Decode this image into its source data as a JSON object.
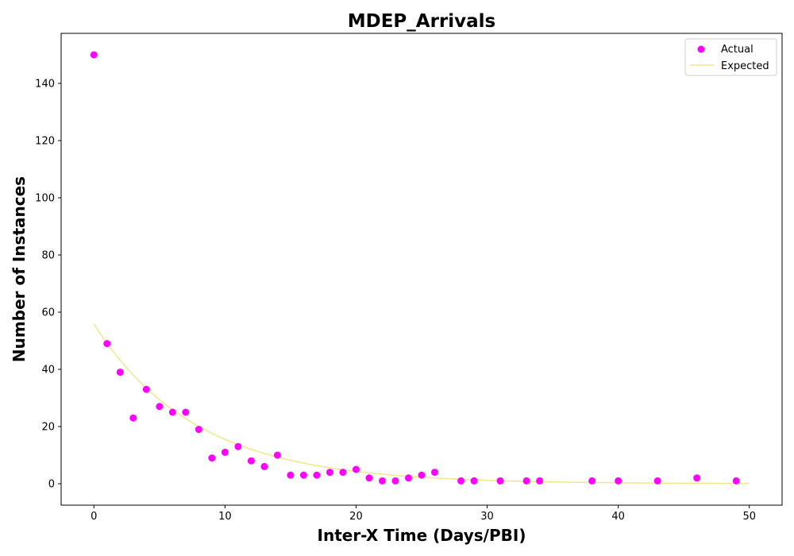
{
  "chart_data": {
    "type": "scatter",
    "title": "MDEP_Arrivals",
    "xlabel": "Inter-X Time (Days/PBI)",
    "ylabel": "Number of Instances",
    "xlim": [
      -2.5,
      52.5
    ],
    "ylim": [
      -7.5,
      157.5
    ],
    "xticks": [
      0,
      10,
      20,
      30,
      40,
      50
    ],
    "yticks": [
      0,
      20,
      40,
      60,
      80,
      100,
      120,
      140
    ],
    "grid": false,
    "legend_position": "top-right",
    "series": [
      {
        "name": "Actual",
        "kind": "scatter",
        "color": "#ff00ff",
        "points": [
          [
            0,
            150
          ],
          [
            1,
            49
          ],
          [
            2,
            39
          ],
          [
            3,
            23
          ],
          [
            4,
            33
          ],
          [
            5,
            27
          ],
          [
            6,
            25
          ],
          [
            7,
            25
          ],
          [
            8,
            19
          ],
          [
            9,
            9
          ],
          [
            10,
            11
          ],
          [
            11,
            13
          ],
          [
            12,
            8
          ],
          [
            13,
            6
          ],
          [
            14,
            10
          ],
          [
            15,
            3
          ],
          [
            16,
            3
          ],
          [
            17,
            3
          ],
          [
            18,
            4
          ],
          [
            19,
            4
          ],
          [
            20,
            5
          ],
          [
            21,
            2
          ],
          [
            22,
            1
          ],
          [
            23,
            1
          ],
          [
            24,
            2
          ],
          [
            25,
            3
          ],
          [
            26,
            4
          ],
          [
            28,
            1
          ],
          [
            29,
            1
          ],
          [
            31,
            1
          ],
          [
            33,
            1
          ],
          [
            34,
            1
          ],
          [
            38,
            1
          ],
          [
            40,
            1
          ],
          [
            43,
            1
          ],
          [
            46,
            2
          ],
          [
            49,
            1
          ]
        ]
      },
      {
        "name": "Expected",
        "kind": "line",
        "color": "#f0e68c",
        "x_range": [
          0,
          50
        ],
        "model": "exponential",
        "initial_value": 55.8,
        "decay_rate": 0.128
      }
    ]
  }
}
